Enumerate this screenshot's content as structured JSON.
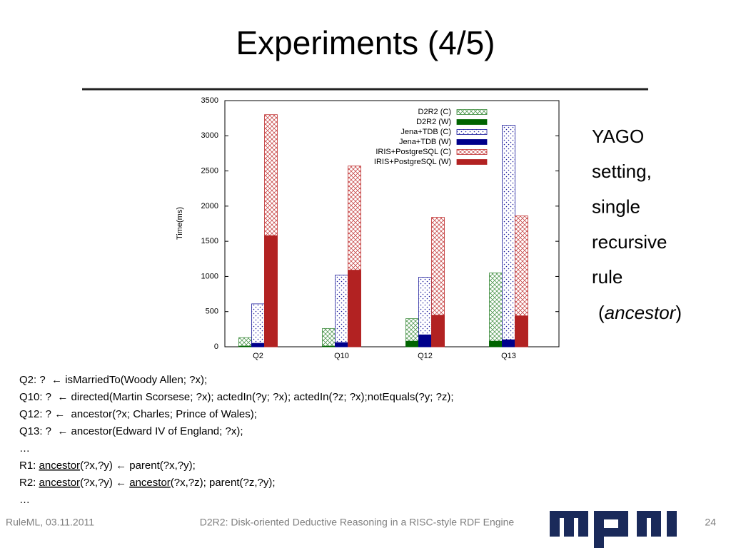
{
  "slide": {
    "title": "Experiments (4/5)",
    "side_text": [
      "YAGO",
      "setting,",
      "single",
      "recursive",
      "rule"
    ],
    "side_last": {
      "open": "(",
      "term": "ancestor",
      "close": ")"
    },
    "queries": [
      [
        {
          "text": "Q2: ?  ← isMarriedTo(Woody Allen; ?x);",
          "underline": false
        }
      ],
      [
        {
          "text": "Q10: ?  ← directed(Martin Scorsese; ?x); actedIn(?y; ?x); actedIn(?z; ?x);notEquals(?y; ?z);",
          "underline": false
        }
      ],
      [
        {
          "text": "Q12: ? ←  ancestor(?x; Charles; Prince of Wales);",
          "underline": false
        }
      ],
      [
        {
          "text": "Q13: ?  ← ancestor(Edward IV of England; ?x);",
          "underline": false
        }
      ],
      [
        {
          "text": "…",
          "underline": false
        }
      ],
      [
        {
          "text": "R1: ",
          "underline": false
        },
        {
          "text": "ancestor",
          "underline": true
        },
        {
          "text": "(?x,?y) ← parent(?x,?y);",
          "underline": false
        }
      ],
      [
        {
          "text": "R2: ",
          "underline": false
        },
        {
          "text": "ancestor",
          "underline": true
        },
        {
          "text": "(?x,?y) ← ",
          "underline": false
        },
        {
          "text": "ancestor",
          "underline": true
        },
        {
          "text": "(?x,?z); parent(?z,?y);",
          "underline": false
        }
      ],
      [
        {
          "text": "…",
          "underline": false
        }
      ]
    ],
    "footer_left": "RuleML, 03.11.2011",
    "footer_center": "D2R2: Disk-oriented Deductive Reasoning in a RISC-style RDF Engine",
    "page_number": "24"
  },
  "chart_data": {
    "type": "bar",
    "y_label": "Time(ms)",
    "categories": [
      "Q2",
      "Q10",
      "Q12",
      "Q13"
    ],
    "series": [
      {
        "name": "D2R2 (C)",
        "color": "#3a8a3a",
        "hatch": "cross",
        "group": 0,
        "values": [
          130,
          260,
          400,
          1050
        ]
      },
      {
        "name": "D2R2 (W)",
        "color": "#006400",
        "hatch": "solid",
        "group": 0,
        "values": [
          10,
          10,
          80,
          80
        ]
      },
      {
        "name": "Jena+TDB (C)",
        "color": "#1c1c9c",
        "hatch": "dots",
        "group": 1,
        "values": [
          610,
          1020,
          990,
          3150
        ]
      },
      {
        "name": "Jena+TDB (W)",
        "color": "#00008b",
        "hatch": "solid",
        "group": 1,
        "values": [
          50,
          60,
          170,
          100
        ]
      },
      {
        "name": "IRIS+PostgreSQL (C)",
        "color": "#c03030",
        "hatch": "cross",
        "group": 2,
        "values": [
          3300,
          2570,
          1840,
          1860
        ]
      },
      {
        "name": "IRIS+PostgreSQL (W)",
        "color": "#b22222",
        "hatch": "solid",
        "group": 2,
        "values": [
          1580,
          1090,
          450,
          440
        ]
      }
    ],
    "ylim": [
      0,
      3500
    ],
    "yticks": [
      0,
      500,
      1000,
      1500,
      2000,
      2500,
      3000,
      3500
    ],
    "grid": false,
    "legend": "upper-right"
  }
}
